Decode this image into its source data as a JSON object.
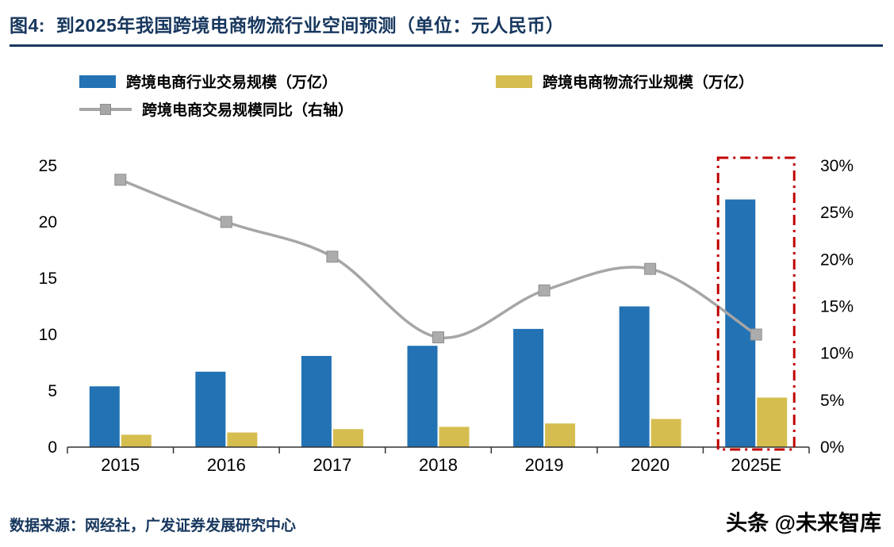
{
  "header": {
    "title": "图4:  到2025年我国跨境电商物流行业空间预测（单位：元人民币）",
    "accent_color": "#17375E"
  },
  "legend": [
    {
      "label": "跨境电商行业交易规模（万亿）",
      "type": "bar",
      "color": "#2272B4"
    },
    {
      "label": "跨境电商物流行业规模（万亿）",
      "type": "bar",
      "color": "#D5BE4F"
    },
    {
      "label": "跨境电商交易规模同比（右轴）",
      "type": "line",
      "color": "#A6A6A6"
    }
  ],
  "chart_data": {
    "type": "bar",
    "title": "到2025年我国跨境电商物流行业空间预测",
    "categories": [
      "2015",
      "2016",
      "2017",
      "2018",
      "2019",
      "2020",
      "2025E"
    ],
    "series": [
      {
        "name": "跨境电商行业交易规模（万亿）",
        "type": "bar",
        "axis": "left",
        "color": "#2272B4",
        "values": [
          5.4,
          6.7,
          8.1,
          9.0,
          10.5,
          12.5,
          22.0
        ]
      },
      {
        "name": "跨境电商物流行业规模（万亿）",
        "type": "bar",
        "axis": "left",
        "color": "#D5BE4F",
        "values": [
          1.1,
          1.3,
          1.6,
          1.8,
          2.1,
          2.5,
          4.4
        ]
      },
      {
        "name": "跨境电商交易规模同比（右轴）",
        "type": "line",
        "axis": "right",
        "color": "#A6A6A6",
        "marker_fill": "#ACACAC",
        "values": [
          28.5,
          24.0,
          20.3,
          11.7,
          16.7,
          19.0,
          12.0
        ]
      }
    ],
    "left_axis": {
      "min": 0,
      "max": 25,
      "ticks": [
        0,
        5,
        10,
        15,
        20,
        25
      ]
    },
    "right_axis": {
      "min": 0,
      "max": 30,
      "ticks": [
        0,
        5,
        10,
        15,
        20,
        25,
        30
      ],
      "suffix": "%"
    },
    "grid": false,
    "legend_position": "top",
    "highlight": {
      "category": "2025E",
      "color": "#C00000"
    }
  },
  "footer": {
    "source": "数据来源：网经社，广发证券发展研究中心",
    "watermark": "头条 @未来智库"
  }
}
